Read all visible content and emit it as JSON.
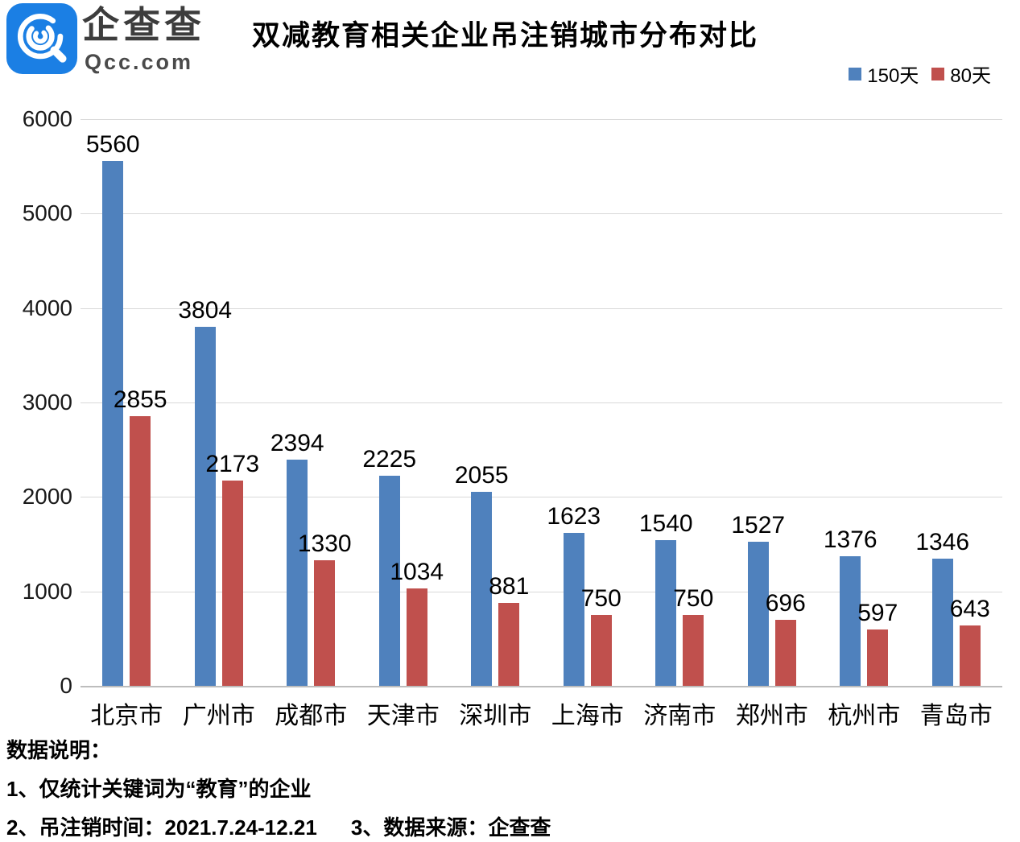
{
  "header": {
    "brand": {
      "name": "企查查",
      "domain": "Qcc.com",
      "logo_color": "#1b7fe4"
    },
    "title": "双减教育相关企业吊注销城市分布对比"
  },
  "legend": [
    {
      "label": "150天",
      "color": "#4f81bd"
    },
    {
      "label": "80天",
      "color": "#c0504d"
    }
  ],
  "chart_data": {
    "type": "bar",
    "title": "双减教育相关企业吊注销城市分布对比",
    "categories": [
      "北京市",
      "广州市",
      "成都市",
      "天津市",
      "深圳市",
      "上海市",
      "济南市",
      "郑州市",
      "杭州市",
      "青岛市"
    ],
    "series": [
      {
        "name": "150天",
        "color": "#4f81bd",
        "values": [
          5560,
          3804,
          2394,
          2225,
          2055,
          1623,
          1540,
          1527,
          1376,
          1346
        ]
      },
      {
        "name": "80天",
        "color": "#c0504d",
        "values": [
          2855,
          2173,
          1330,
          1034,
          881,
          750,
          750,
          696,
          597,
          643
        ]
      }
    ],
    "xlabel": "",
    "ylabel": "",
    "ylim": [
      0,
      6000
    ],
    "ytick_step": 1000,
    "grid": true,
    "legend_position": "top-right",
    "data_labels": true
  },
  "footer": {
    "heading": "数据说明：",
    "note1": "1、仅统计关键词为“教育”的企业",
    "note2": "2、吊注销时间：2021.7.24-12.21",
    "note3": "3、数据来源：企查查"
  }
}
